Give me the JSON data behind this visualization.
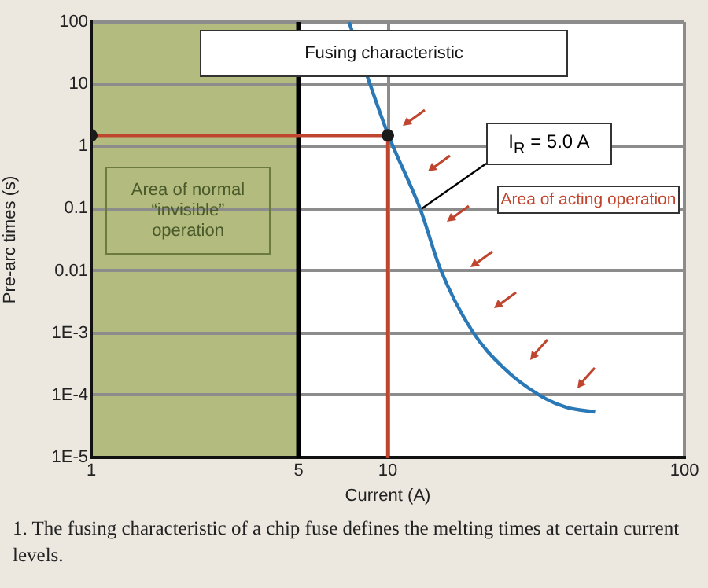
{
  "chart_data": {
    "type": "line",
    "title": "Fusing characteristic",
    "xlabel": "Current (A)",
    "ylabel": "Pre-arc times (s)",
    "log": "xy",
    "xlim": [
      1,
      100
    ],
    "ylim": [
      1e-05,
      100
    ],
    "xticks": [
      1,
      5,
      10,
      100
    ],
    "yticks": [
      100,
      10,
      1,
      0.1,
      0.01,
      {
        "value": 0.001,
        "label": "1E-3"
      },
      {
        "value": 0.0001,
        "label": "1E-4"
      },
      {
        "value": 1e-05,
        "label": "1E-5"
      }
    ],
    "grid": true,
    "legend": false,
    "series": [
      {
        "color": "#2a78b6",
        "marker": "none",
        "x": [
          7.4,
          8.5,
          10,
          12.9,
          15,
          19.2,
          24.5,
          32.5,
          40,
          50
        ],
        "values": [
          100,
          14,
          1.6,
          0.095,
          0.011,
          0.0011,
          0.00028,
          0.0001,
          6.4e-05,
          5.4e-05
        ]
      },
      {
        "color": "#c0452e",
        "marker": "none",
        "x": [
          1,
          10,
          10
        ],
        "values": [
          1.5,
          1.5,
          1e-05
        ]
      },
      {
        "type": "scatter",
        "color": "#1a1a1a",
        "marker": "circle",
        "x": [
          1,
          10
        ],
        "values": [
          1.5,
          1.5
        ]
      }
    ],
    "bands": [
      {
        "axis": "x",
        "from": 1,
        "to": 5,
        "label": "Area of normal “invisible” operation",
        "color": "#b3bc7e"
      }
    ],
    "ref_lines": [
      {
        "axis": "x",
        "value": 5,
        "color": "#000000"
      }
    ],
    "annotations": [
      {
        "text": "I$_{R}$ = 5.0 A",
        "x": 13,
        "y": 0.1
      },
      "Area of acting operation",
      "1. The fusing characteristic of a chip fuse defines the melting times at certain current levels."
    ]
  }
}
